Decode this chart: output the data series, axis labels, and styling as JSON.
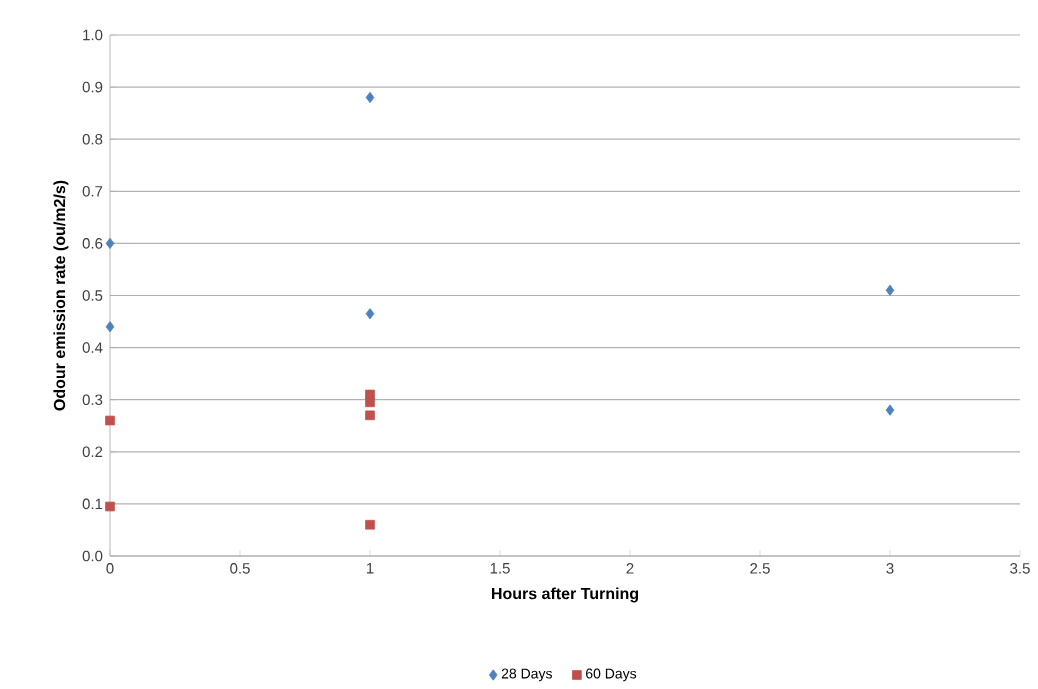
{
  "chart_data": {
    "type": "scatter",
    "xlabel": "Hours after Turning",
    "ylabel": "Odour emission rate (ou/m2/s)",
    "series": [
      {
        "name": "28 Days",
        "color": "#4f81bd",
        "marker": "diamond",
        "x": [
          0,
          0,
          1,
          1,
          3,
          3
        ],
        "values": [
          0.6,
          0.44,
          0.88,
          0.465,
          0.51,
          0.28
        ]
      },
      {
        "name": "60 Days",
        "color": "#c0504d",
        "marker": "square",
        "x": [
          0,
          0,
          1,
          1,
          1,
          1
        ],
        "values": [
          0.26,
          0.095,
          0.31,
          0.295,
          0.27,
          0.06
        ]
      }
    ],
    "xlim": [
      0,
      3.5
    ],
    "xticks": [
      0,
      0.5,
      1,
      1.5,
      2,
      2.5,
      3,
      3.5
    ],
    "ylim": [
      0,
      1.0
    ],
    "yticks": [
      {
        "value": 0,
        "label": "0.0"
      },
      {
        "value": 0.1,
        "label": "0.1"
      },
      {
        "value": 0.2,
        "label": "0.2"
      },
      {
        "value": 0.3,
        "label": "0.3"
      },
      {
        "value": 0.4,
        "label": "0.4"
      },
      {
        "value": 0.5,
        "label": "0.5"
      },
      {
        "value": 0.6,
        "label": "0.6"
      },
      {
        "value": 0.7,
        "label": "0.7"
      },
      {
        "value": 0.8,
        "label": "0.8"
      },
      {
        "value": 0.9,
        "label": "0.9"
      },
      {
        "value": 1.0,
        "label": "1.0"
      }
    ],
    "grid": "y",
    "legend": "bottom"
  }
}
